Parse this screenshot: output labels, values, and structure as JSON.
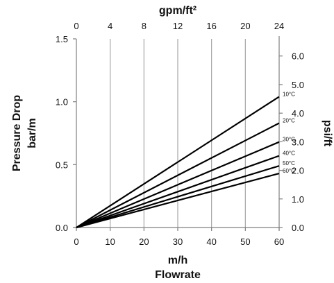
{
  "chart_data": {
    "type": "line",
    "title": "",
    "x_bottom": {
      "label_line1": "m/h",
      "label_line2": "Flowrate",
      "range": [
        0,
        60
      ],
      "ticks": [
        0,
        10,
        20,
        30,
        40,
        50,
        60
      ],
      "tick_labels": [
        "0",
        "10",
        "20",
        "30",
        "40",
        "50",
        "60"
      ]
    },
    "x_top": {
      "label": "gpm/ft²",
      "range": [
        0,
        24
      ],
      "ticks": [
        0,
        4,
        8,
        12,
        16,
        20,
        24
      ],
      "tick_labels": [
        "0",
        "4",
        "8",
        "12",
        "16",
        "20",
        "24"
      ]
    },
    "y_left": {
      "label_line1": "Pressure Drop",
      "label_line2": "bar/m",
      "range": [
        0,
        1.5
      ],
      "ticks": [
        0,
        0.5,
        1.0,
        1.5
      ],
      "tick_labels": [
        "0.0",
        "0.5",
        "1.0",
        "1.5"
      ]
    },
    "y_right": {
      "label": "psi/ft",
      "range": [
        0,
        6.6
      ],
      "ticks": [
        0,
        1,
        2,
        3,
        4,
        5,
        6
      ],
      "tick_labels": [
        "0.0",
        "1.0",
        "2.0",
        "3.0",
        "4.0",
        "5.0",
        "6.0"
      ]
    },
    "grid": {
      "vertical": true,
      "horizontal": false
    },
    "series": [
      {
        "name": "10°C",
        "x": [
          0,
          60
        ],
        "y": [
          0,
          1.04
        ]
      },
      {
        "name": "20°C",
        "x": [
          0,
          60
        ],
        "y": [
          0,
          0.83
        ]
      },
      {
        "name": "30°C",
        "x": [
          0,
          60
        ],
        "y": [
          0,
          0.68
        ]
      },
      {
        "name": "40°C",
        "x": [
          0,
          60
        ],
        "y": [
          0,
          0.57
        ]
      },
      {
        "name": "50°C",
        "x": [
          0,
          60
        ],
        "y": [
          0,
          0.49
        ]
      },
      {
        "name": "60°C",
        "x": [
          0,
          60
        ],
        "y": [
          0,
          0.43
        ]
      }
    ],
    "colors": {
      "line": "#000000",
      "grid": "#a6a6a6",
      "axis": "#7f7f7f",
      "text": "#111111"
    }
  }
}
